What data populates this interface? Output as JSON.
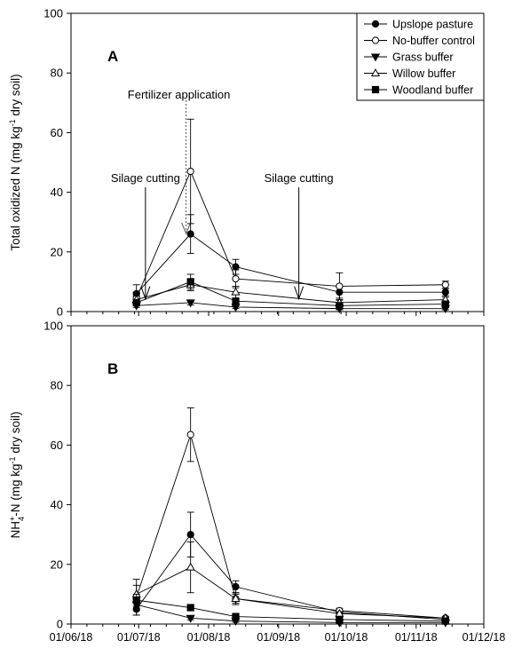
{
  "x_tick_labels": [
    "01/06/18",
    "01/07/18",
    "01/08/18",
    "01/09/18",
    "01/10/18",
    "01/11/18",
    "01/12/18"
  ],
  "legend": {
    "entries": [
      {
        "name": "Upslope pasture",
        "marker": "circle-filled"
      },
      {
        "name": "No-buffer control",
        "marker": "circle-open"
      },
      {
        "name": "Grass buffer",
        "marker": "triangle-down-filled"
      },
      {
        "name": "Willow buffer",
        "marker": "triangle-up-open"
      },
      {
        "name": "Woodland buffer",
        "marker": "square-filled"
      }
    ]
  },
  "chart_data": [
    {
      "type": "line",
      "panel_label": "A",
      "ylabel": "Total oxidized N (mg kg",
      "ylabel_sup": "-1",
      "ylabel_tail": " dry soil)",
      "ylim": [
        0,
        100
      ],
      "y_ticks": [
        0,
        20,
        40,
        60,
        80,
        100
      ],
      "x_range": [
        "2018-06-01",
        "2018-12-01"
      ],
      "x_ticks": [
        "2018-06-01",
        "2018-07-01",
        "2018-08-01",
        "2018-09-01",
        "2018-10-01",
        "2018-11-01",
        "2018-12-01"
      ],
      "x": [
        "2018-06-30",
        "2018-07-24",
        "2018-08-13",
        "2018-09-28",
        "2018-11-14"
      ],
      "series": [
        {
          "name": "Upslope pasture",
          "marker": "circle-filled",
          "values": [
            6,
            26,
            15,
            6.5,
            6.5
          ],
          "errors": [
            3,
            6.5,
            2.5,
            2,
            1.2
          ]
        },
        {
          "name": "No-buffer control",
          "marker": "circle-open",
          "values": [
            4.5,
            47,
            11,
            8.5,
            9
          ],
          "errors": [
            2,
            17.5,
            3,
            4.5,
            1.2
          ]
        },
        {
          "name": "Grass buffer",
          "marker": "triangle-down-filled",
          "values": [
            2,
            3,
            1.5,
            1,
            1
          ],
          "errors": [
            0.6,
            0.8,
            0.5,
            0.4,
            0.4
          ]
        },
        {
          "name": "Willow buffer",
          "marker": "triangle-up-open",
          "values": [
            4,
            9,
            6.5,
            3,
            4
          ],
          "errors": [
            1.2,
            2,
            2,
            0.8,
            0.8
          ]
        },
        {
          "name": "Woodland buffer",
          "marker": "square-filled",
          "values": [
            3,
            10,
            3.5,
            2,
            2.5
          ],
          "errors": [
            1,
            2.5,
            1,
            0.6,
            0.6
          ]
        }
      ],
      "annotations": [
        {
          "text": "Fertilizer application",
          "date": "2018-07-22",
          "y": 28,
          "style": "dotted"
        },
        {
          "text": "Silage cutting",
          "date": "2018-07-04",
          "y": 12,
          "style": "solid"
        },
        {
          "text": "Silage cutting",
          "date": "2018-09-10",
          "y": 12,
          "style": "solid"
        }
      ]
    },
    {
      "type": "line",
      "panel_label": "B",
      "ylabel": "NH",
      "ylabel_sub": "4",
      "ylabel_sup1": "+",
      "ylabel_mid": "-N (mg kg",
      "ylabel_sup": "-1",
      "ylabel_tail": " dry soil)",
      "ylim": [
        0,
        100
      ],
      "y_ticks": [
        0,
        20,
        40,
        60,
        80,
        100
      ],
      "x_range": [
        "2018-06-01",
        "2018-12-01"
      ],
      "x_ticks": [
        "2018-06-01",
        "2018-07-01",
        "2018-08-01",
        "2018-09-01",
        "2018-10-01",
        "2018-11-01",
        "2018-12-01"
      ],
      "x": [
        "2018-06-30",
        "2018-07-24",
        "2018-08-13",
        "2018-09-28",
        "2018-11-14"
      ],
      "series": [
        {
          "name": "Upslope pasture",
          "marker": "circle-filled",
          "values": [
            5,
            30,
            12.5,
            4,
            1.5
          ],
          "errors": [
            2,
            7.5,
            2,
            0.6,
            0.4
          ]
        },
        {
          "name": "No-buffer control",
          "marker": "circle-open",
          "values": [
            9,
            63.5,
            8.5,
            4.5,
            2
          ],
          "errors": [
            6,
            9,
            1.5,
            0.8,
            0.5
          ]
        },
        {
          "name": "Grass buffer",
          "marker": "triangle-down-filled",
          "values": [
            6.5,
            2,
            1,
            0.5,
            0.5
          ],
          "errors": [
            2,
            0.6,
            0.4,
            0.3,
            0.3
          ]
        },
        {
          "name": "Willow buffer",
          "marker": "triangle-up-open",
          "values": [
            10,
            19,
            8.5,
            3.5,
            2
          ],
          "errors": [
            3,
            8.5,
            2,
            0.6,
            0.4
          ]
        },
        {
          "name": "Woodland buffer",
          "marker": "square-filled",
          "values": [
            8,
            5.5,
            2.5,
            1.5,
            1
          ],
          "errors": [
            2,
            1,
            0.6,
            0.4,
            0.3
          ]
        }
      ],
      "annotations": []
    }
  ]
}
